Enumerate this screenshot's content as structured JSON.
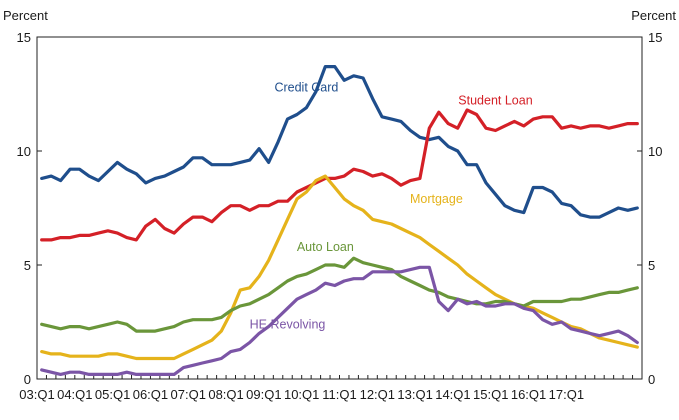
{
  "chart_data": {
    "type": "line",
    "ylabel_left": "Percent",
    "ylabel_right": "Percent",
    "ylim": [
      0,
      15
    ],
    "y_ticks": [
      0,
      5,
      10,
      15
    ],
    "x_start": "2003:Q1",
    "x_end": "2017:Q4",
    "x_tick_labels": [
      "03:Q1",
      "04:Q1",
      "05:Q1",
      "06:Q1",
      "07:Q1",
      "08:Q1",
      "09:Q1",
      "10:Q1",
      "11:Q1",
      "12:Q1",
      "13:Q1",
      "14:Q1",
      "15:Q1",
      "16:Q1",
      "17:Q1"
    ],
    "grid": false,
    "legend": "inline labels",
    "series": [
      {
        "name": "Credit Card",
        "color": "#1f4e8c",
        "label_at": "2010:Q1",
        "values": [
          8.8,
          8.9,
          8.7,
          9.2,
          9.2,
          8.9,
          8.7,
          9.1,
          9.5,
          9.2,
          9.0,
          8.6,
          8.8,
          8.9,
          9.1,
          9.3,
          9.7,
          9.7,
          9.4,
          9.4,
          9.4,
          9.5,
          9.6,
          10.1,
          9.5,
          10.4,
          11.4,
          11.6,
          11.9,
          12.6,
          13.7,
          13.7,
          13.1,
          13.3,
          13.2,
          12.3,
          11.5,
          11.4,
          11.3,
          10.9,
          10.6,
          10.5,
          10.6,
          10.2,
          10.0,
          9.4,
          9.4,
          8.6,
          8.1,
          7.6,
          7.4,
          7.3,
          8.4,
          8.4,
          8.2,
          7.7,
          7.6,
          7.2,
          7.1,
          7.1,
          7.3,
          7.5,
          7.4,
          7.5
        ]
      },
      {
        "name": "Student Loan",
        "color": "#d42027",
        "label_at": "2015:Q1",
        "values": [
          6.1,
          6.1,
          6.2,
          6.2,
          6.3,
          6.3,
          6.4,
          6.5,
          6.4,
          6.2,
          6.1,
          6.7,
          7.0,
          6.6,
          6.4,
          6.8,
          7.1,
          7.1,
          6.9,
          7.3,
          7.6,
          7.6,
          7.4,
          7.6,
          7.6,
          7.8,
          7.8,
          8.2,
          8.4,
          8.6,
          8.8,
          8.8,
          8.9,
          9.2,
          9.1,
          8.9,
          9.0,
          8.8,
          8.5,
          8.7,
          8.8,
          11.0,
          11.7,
          11.2,
          11.0,
          11.8,
          11.6,
          11.0,
          10.9,
          11.1,
          11.3,
          11.1,
          11.4,
          11.5,
          11.5,
          11.0,
          11.1,
          11.0,
          11.1,
          11.1,
          11.0,
          11.1,
          11.2,
          11.2
        ]
      },
      {
        "name": "Mortgage",
        "color": "#e5b31b",
        "label_at": "2012:Q4",
        "values": [
          1.2,
          1.1,
          1.1,
          1.0,
          1.0,
          1.0,
          1.0,
          1.1,
          1.1,
          1.0,
          0.9,
          0.9,
          0.9,
          0.9,
          0.9,
          1.1,
          1.3,
          1.5,
          1.7,
          2.1,
          2.9,
          3.9,
          4.0,
          4.5,
          5.2,
          6.1,
          7.0,
          7.9,
          8.2,
          8.7,
          8.9,
          8.4,
          7.9,
          7.6,
          7.4,
          7.0,
          6.9,
          6.8,
          6.6,
          6.4,
          6.2,
          5.9,
          5.6,
          5.3,
          5.0,
          4.6,
          4.3,
          4.0,
          3.7,
          3.5,
          3.3,
          3.2,
          3.1,
          2.9,
          2.7,
          2.5,
          2.3,
          2.2,
          2.0,
          1.8,
          1.7,
          1.6,
          1.5,
          1.4
        ]
      },
      {
        "name": "Auto Loan",
        "color": "#6a963a",
        "label_at": "2010:Q3",
        "values": [
          2.4,
          2.3,
          2.2,
          2.3,
          2.3,
          2.2,
          2.3,
          2.4,
          2.5,
          2.4,
          2.1,
          2.1,
          2.1,
          2.2,
          2.3,
          2.5,
          2.6,
          2.6,
          2.6,
          2.7,
          3.0,
          3.2,
          3.3,
          3.5,
          3.7,
          4.0,
          4.3,
          4.5,
          4.6,
          4.8,
          5.0,
          5.0,
          4.9,
          5.3,
          5.1,
          5.0,
          4.9,
          4.8,
          4.5,
          4.3,
          4.1,
          3.9,
          3.8,
          3.6,
          3.5,
          3.4,
          3.3,
          3.3,
          3.4,
          3.4,
          3.3,
          3.2,
          3.4,
          3.4,
          3.4,
          3.4,
          3.5,
          3.5,
          3.6,
          3.7,
          3.8,
          3.8,
          3.9,
          4.0
        ]
      },
      {
        "name": "HE Revolving",
        "color": "#7b55a6",
        "label_at": "2009:Q3",
        "values": [
          0.4,
          0.3,
          0.2,
          0.3,
          0.3,
          0.2,
          0.2,
          0.2,
          0.2,
          0.3,
          0.2,
          0.2,
          0.2,
          0.2,
          0.2,
          0.5,
          0.6,
          0.7,
          0.8,
          0.9,
          1.2,
          1.3,
          1.6,
          2.0,
          2.3,
          2.7,
          3.1,
          3.5,
          3.7,
          3.9,
          4.2,
          4.1,
          4.3,
          4.4,
          4.4,
          4.7,
          4.7,
          4.7,
          4.7,
          4.8,
          4.9,
          4.9,
          3.4,
          3.0,
          3.5,
          3.3,
          3.4,
          3.2,
          3.2,
          3.3,
          3.3,
          3.1,
          3.0,
          2.6,
          2.4,
          2.5,
          2.2,
          2.1,
          2.0,
          1.9,
          2.0,
          2.1,
          1.9,
          1.6
        ]
      }
    ]
  }
}
